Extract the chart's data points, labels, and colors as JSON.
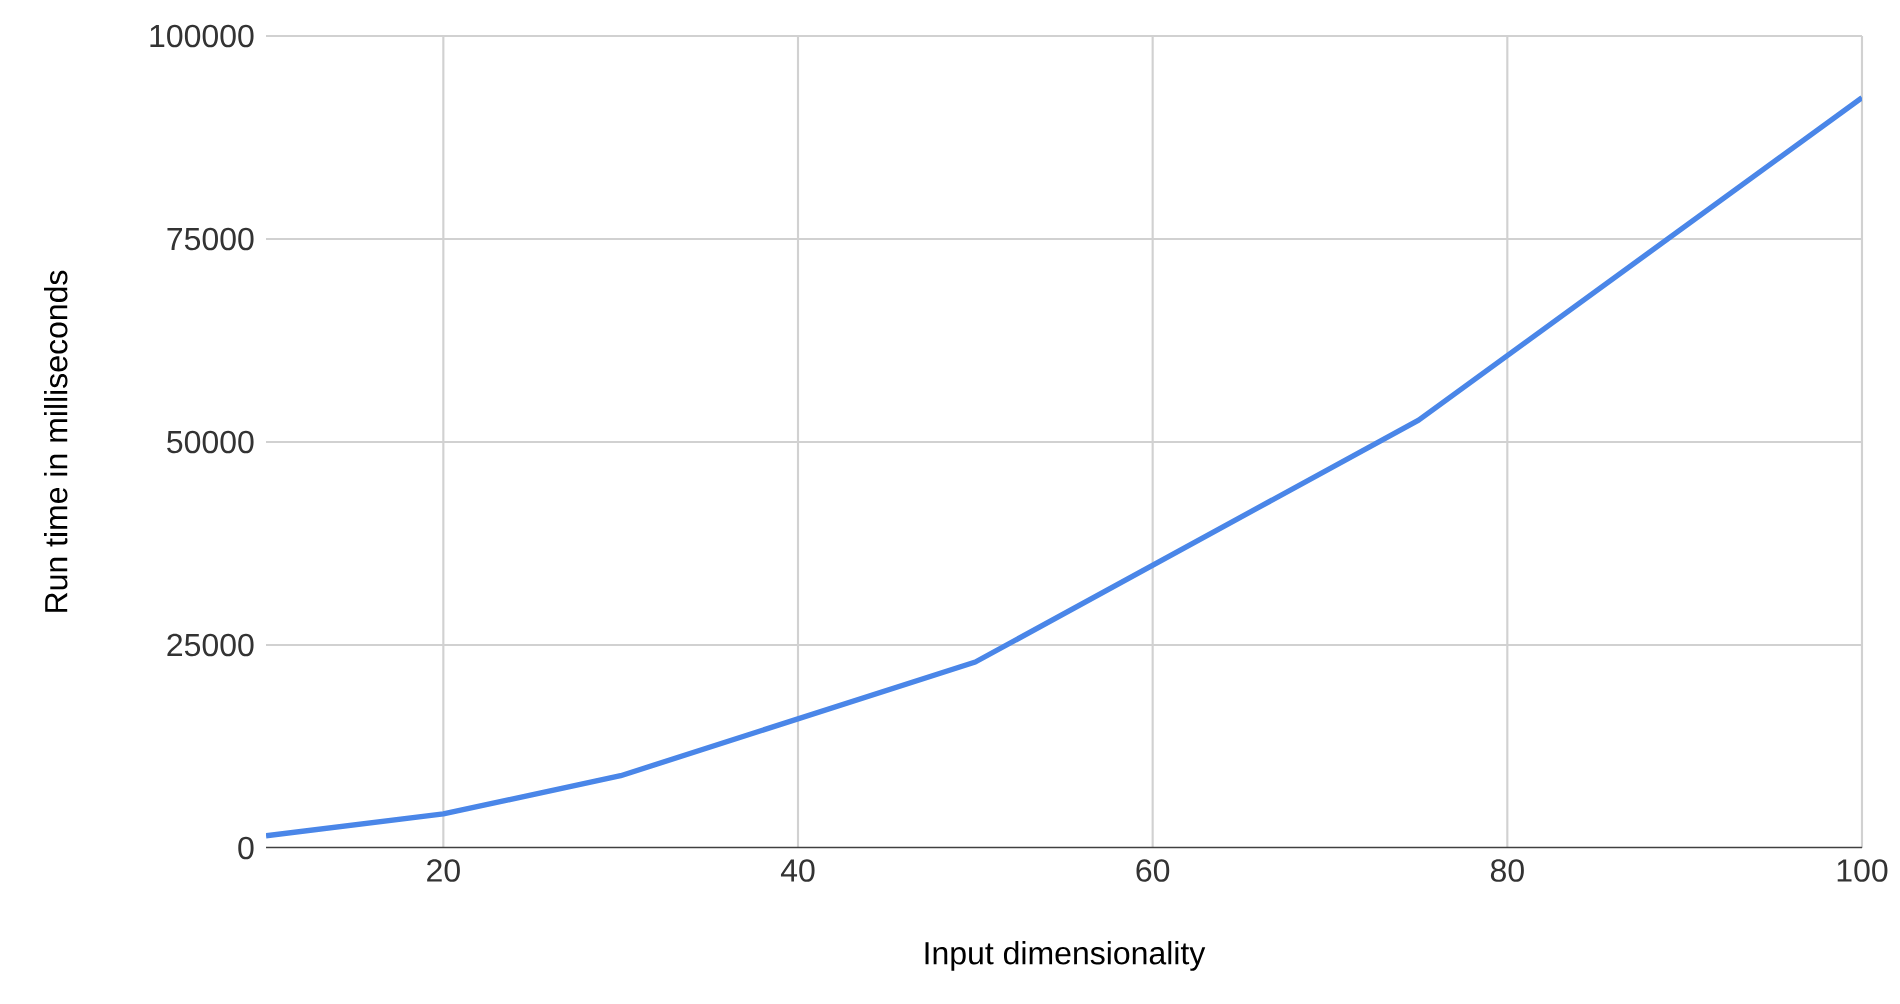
{
  "chart_data": {
    "type": "line",
    "xlabel": "Input dimensionality",
    "ylabel": "Run time in milliseconds",
    "x": [
      10,
      20,
      30,
      50,
      75,
      100
    ],
    "series": [
      {
        "color": "#4a86e8",
        "values": [
          1500,
          4200,
          8900,
          22900,
          52700,
          92400
        ]
      }
    ],
    "xlim": [
      10,
      100
    ],
    "xticks": [
      20,
      40,
      60,
      80,
      100
    ],
    "ylim": [
      0,
      100000
    ],
    "yticks": [
      0,
      25000,
      50000,
      75000,
      100000
    ],
    "grid": true,
    "marker": "none",
    "line_style": "solid"
  }
}
